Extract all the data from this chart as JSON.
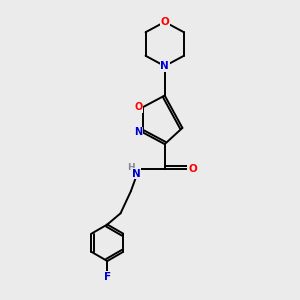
{
  "bg_color": "#ebebeb",
  "bond_color": "#000000",
  "atom_colors": {
    "O": "#ff0000",
    "N": "#0000cc",
    "F": "#0000cc",
    "H": "#555555",
    "C": "#000000"
  }
}
